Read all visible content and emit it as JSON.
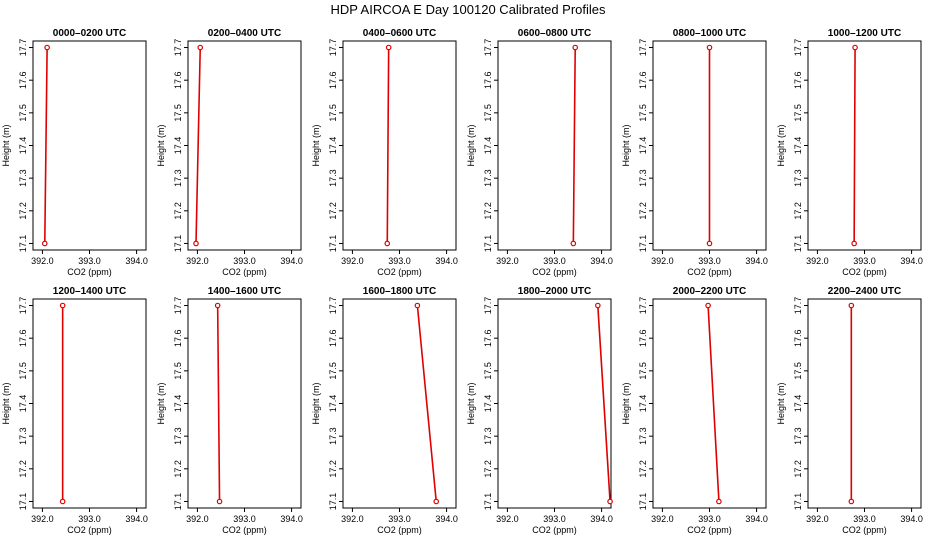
{
  "figure": {
    "title": "HDP AIRCOA E  Day 100120  Calibrated Profiles"
  },
  "colors": {
    "profile_line": "#e00000",
    "frame": "#000000"
  },
  "chart_data": [
    {
      "type": "line",
      "title": "0000–0200 UTC",
      "xlabel": "CO2 (ppm)",
      "ylabel": "Height (m)",
      "xlim": [
        391.8,
        394.2
      ],
      "ylim": [
        17.08,
        17.72
      ],
      "xticks": [
        "392.0",
        "393.0",
        "394.0"
      ],
      "yticks": [
        "17.1",
        "17.2",
        "17.3",
        "17.4",
        "17.5",
        "17.6",
        "17.7"
      ],
      "series": [
        {
          "points": [
            {
              "x": 392.05,
              "y": 17.1
            },
            {
              "x": 392.1,
              "y": 17.7
            }
          ]
        }
      ]
    },
    {
      "type": "line",
      "title": "0200–0400 UTC",
      "xlabel": "CO2 (ppm)",
      "ylabel": "Height (m)",
      "xlim": [
        391.8,
        394.2
      ],
      "ylim": [
        17.08,
        17.72
      ],
      "xticks": [
        "392.0",
        "393.0",
        "394.0"
      ],
      "yticks": [
        "17.1",
        "17.2",
        "17.3",
        "17.4",
        "17.5",
        "17.6",
        "17.7"
      ],
      "series": [
        {
          "points": [
            {
              "x": 391.97,
              "y": 17.1
            },
            {
              "x": 392.06,
              "y": 17.7
            }
          ]
        }
      ]
    },
    {
      "type": "line",
      "title": "0400–0600 UTC",
      "xlabel": "CO2 (ppm)",
      "ylabel": "Height (m)",
      "xlim": [
        391.8,
        394.2
      ],
      "ylim": [
        17.08,
        17.72
      ],
      "xticks": [
        "392.0",
        "393.0",
        "394.0"
      ],
      "yticks": [
        "17.1",
        "17.2",
        "17.3",
        "17.4",
        "17.5",
        "17.6",
        "17.7"
      ],
      "series": [
        {
          "points": [
            {
              "x": 392.74,
              "y": 17.1
            },
            {
              "x": 392.77,
              "y": 17.7
            }
          ]
        }
      ]
    },
    {
      "type": "line",
      "title": "0600–0800 UTC",
      "xlabel": "CO2 (ppm)",
      "ylabel": "Height (m)",
      "xlim": [
        391.8,
        394.2
      ],
      "ylim": [
        17.08,
        17.72
      ],
      "xticks": [
        "392.0",
        "393.0",
        "394.0"
      ],
      "yticks": [
        "17.1",
        "17.2",
        "17.3",
        "17.4",
        "17.5",
        "17.6",
        "17.7"
      ],
      "series": [
        {
          "points": [
            {
              "x": 393.4,
              "y": 17.1
            },
            {
              "x": 393.44,
              "y": 17.7
            }
          ]
        }
      ]
    },
    {
      "type": "line",
      "title": "0800–1000 UTC",
      "xlabel": "CO2 (ppm)",
      "ylabel": "Height (m)",
      "xlim": [
        391.8,
        394.2
      ],
      "ylim": [
        17.08,
        17.72
      ],
      "xticks": [
        "392.0",
        "393.0",
        "394.0"
      ],
      "yticks": [
        "17.1",
        "17.2",
        "17.3",
        "17.4",
        "17.5",
        "17.6",
        "17.7"
      ],
      "series": [
        {
          "points": [
            {
              "x": 393.0,
              "y": 17.1
            },
            {
              "x": 393.0,
              "y": 17.7
            }
          ]
        }
      ]
    },
    {
      "type": "line",
      "title": "1000–1200 UTC",
      "xlabel": "CO2 (ppm)",
      "ylabel": "Height (m)",
      "xlim": [
        391.8,
        394.2
      ],
      "ylim": [
        17.08,
        17.72
      ],
      "xticks": [
        "392.0",
        "393.0",
        "394.0"
      ],
      "yticks": [
        "17.1",
        "17.2",
        "17.3",
        "17.4",
        "17.5",
        "17.6",
        "17.7"
      ],
      "series": [
        {
          "points": [
            {
              "x": 392.78,
              "y": 17.1
            },
            {
              "x": 392.8,
              "y": 17.7
            }
          ]
        }
      ]
    },
    {
      "type": "line",
      "title": "1200–1400 UTC",
      "xlabel": "CO2 (ppm)",
      "ylabel": "Height (m)",
      "xlim": [
        391.8,
        394.2
      ],
      "ylim": [
        17.08,
        17.72
      ],
      "xticks": [
        "392.0",
        "393.0",
        "394.0"
      ],
      "yticks": [
        "17.1",
        "17.2",
        "17.3",
        "17.4",
        "17.5",
        "17.6",
        "17.7"
      ],
      "series": [
        {
          "points": [
            {
              "x": 392.43,
              "y": 17.1
            },
            {
              "x": 392.43,
              "y": 17.7
            }
          ]
        }
      ]
    },
    {
      "type": "line",
      "title": "1400–1600 UTC",
      "xlabel": "CO2 (ppm)",
      "ylabel": "Height (m)",
      "xlim": [
        391.8,
        394.2
      ],
      "ylim": [
        17.08,
        17.72
      ],
      "xticks": [
        "392.0",
        "393.0",
        "394.0"
      ],
      "yticks": [
        "17.1",
        "17.2",
        "17.3",
        "17.4",
        "17.5",
        "17.6",
        "17.7"
      ],
      "series": [
        {
          "points": [
            {
              "x": 392.47,
              "y": 17.1
            },
            {
              "x": 392.43,
              "y": 17.7
            }
          ]
        }
      ]
    },
    {
      "type": "line",
      "title": "1600–1800 UTC",
      "xlabel": "CO2 (ppm)",
      "ylabel": "Height (m)",
      "xlim": [
        391.8,
        394.2
      ],
      "ylim": [
        17.08,
        17.72
      ],
      "xticks": [
        "392.0",
        "393.0",
        "394.0"
      ],
      "yticks": [
        "17.1",
        "17.2",
        "17.3",
        "17.4",
        "17.5",
        "17.6",
        "17.7"
      ],
      "series": [
        {
          "points": [
            {
              "x": 393.78,
              "y": 17.1
            },
            {
              "x": 393.38,
              "y": 17.7
            }
          ]
        }
      ]
    },
    {
      "type": "line",
      "title": "1800–2000 UTC",
      "xlabel": "CO2 (ppm)",
      "ylabel": "Height (m)",
      "xlim": [
        391.8,
        394.2
      ],
      "ylim": [
        17.08,
        17.72
      ],
      "xticks": [
        "392.0",
        "393.0",
        "394.0"
      ],
      "yticks": [
        "17.1",
        "17.2",
        "17.3",
        "17.4",
        "17.5",
        "17.6",
        "17.7"
      ],
      "series": [
        {
          "points": [
            {
              "x": 394.18,
              "y": 17.1
            },
            {
              "x": 393.92,
              "y": 17.7
            }
          ]
        }
      ]
    },
    {
      "type": "line",
      "title": "2000–2200 UTC",
      "xlabel": "CO2 (ppm)",
      "ylabel": "Height (m)",
      "xlim": [
        391.8,
        394.2
      ],
      "ylim": [
        17.08,
        17.72
      ],
      "xticks": [
        "392.0",
        "393.0",
        "394.0"
      ],
      "yticks": [
        "17.1",
        "17.2",
        "17.3",
        "17.4",
        "17.5",
        "17.6",
        "17.7"
      ],
      "series": [
        {
          "points": [
            {
              "x": 393.2,
              "y": 17.1
            },
            {
              "x": 392.97,
              "y": 17.7
            }
          ]
        }
      ]
    },
    {
      "type": "line",
      "title": "2200–2400 UTC",
      "xlabel": "CO2 (ppm)",
      "ylabel": "Height (m)",
      "xlim": [
        391.8,
        394.2
      ],
      "ylim": [
        17.08,
        17.72
      ],
      "xticks": [
        "392.0",
        "393.0",
        "394.0"
      ],
      "yticks": [
        "17.1",
        "17.2",
        "17.3",
        "17.4",
        "17.5",
        "17.6",
        "17.7"
      ],
      "series": [
        {
          "points": [
            {
              "x": 392.72,
              "y": 17.1
            },
            {
              "x": 392.72,
              "y": 17.7
            }
          ]
        }
      ]
    }
  ]
}
